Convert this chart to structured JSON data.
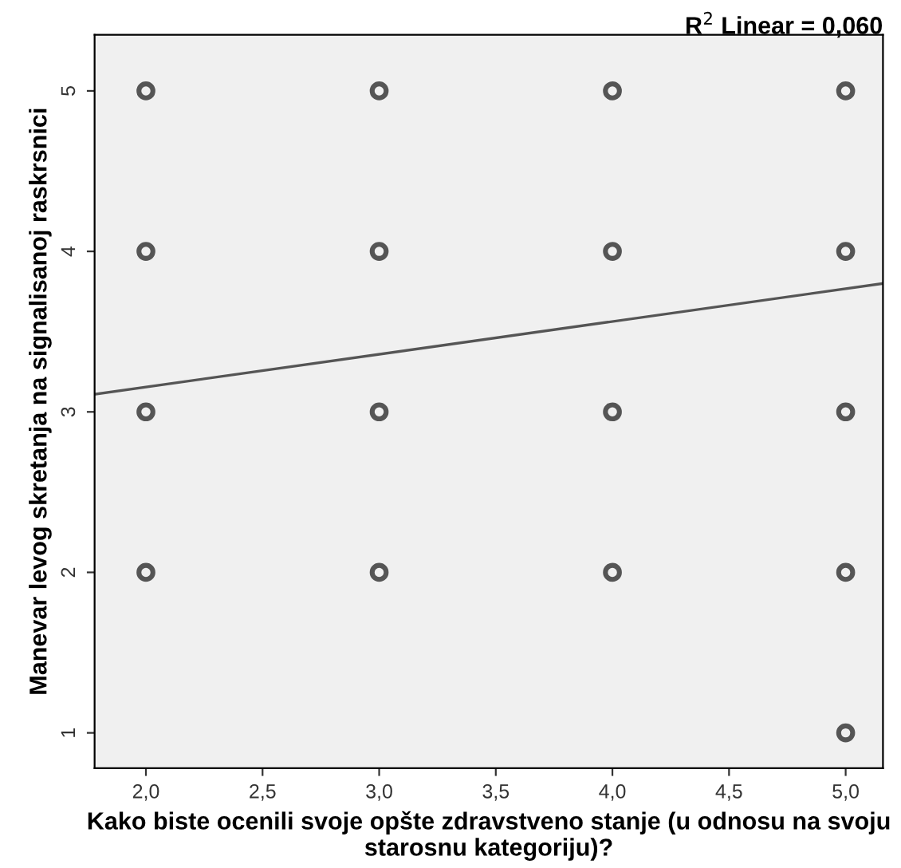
{
  "chart_data": {
    "type": "scatter",
    "xlabel": "Kako biste ocenili svoje opšte zdravstveno stanje (u odnosu na svoju starosnu kategoriju)?",
    "ylabel": "Manevar levog skretanja na signalisanoj raskrsnici",
    "annotations": [
      "R$^{2}$ Linear = 0,060"
    ],
    "x": [
      2,
      2,
      2,
      2,
      3,
      3,
      3,
      3,
      4,
      4,
      4,
      4,
      5,
      5,
      5,
      5,
      5
    ],
    "series": [
      {
        "color": "#555555",
        "marker": "circle",
        "values": [
          5,
          4,
          3,
          2,
          5,
          4,
          3,
          2,
          5,
          4,
          3,
          2,
          5,
          4,
          3,
          2,
          1
        ]
      },
      {
        "type": "line",
        "color": "#555555",
        "x": [
          1.78,
          5.16
        ],
        "values": [
          3.11,
          3.8
        ],
        "line_style": "solid",
        "marker": "none"
      }
    ],
    "xlim": [
      1.78,
      5.16
    ],
    "ylim": [
      0.78,
      5.35
    ],
    "xticks": [
      {
        "value": 2.0,
        "label": "2,0"
      },
      {
        "value": 2.5,
        "label": "2,5"
      },
      {
        "value": 3.0,
        "label": "3,0"
      },
      {
        "value": 3.5,
        "label": "3,5"
      },
      {
        "value": 4.0,
        "label": "4,0"
      },
      {
        "value": 4.5,
        "label": "4,5"
      },
      {
        "value": 5.0,
        "label": "5,0"
      }
    ],
    "yticks": [
      1,
      2,
      3,
      4,
      5
    ],
    "grid": false,
    "legend": false
  }
}
